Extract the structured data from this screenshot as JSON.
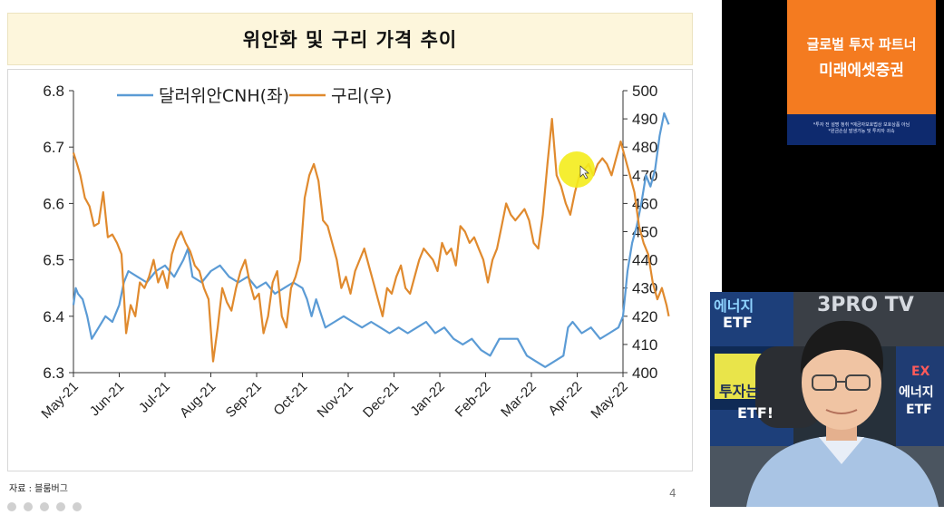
{
  "slide": {
    "title": "위안화 및 구리 가격 추이",
    "source": "자료 : 블룸버그",
    "page_number": "4"
  },
  "chart_data": {
    "type": "line",
    "title": "",
    "xlabel": "",
    "ylabel": "",
    "x_ticks": [
      "May-21",
      "Jun-21",
      "Jul-21",
      "Aug-21",
      "Sep-21",
      "Oct-21",
      "Nov-21",
      "Dec-21",
      "Jan-22",
      "Feb-22",
      "Mar-22",
      "Apr-22",
      "May-22"
    ],
    "y_left": {
      "range": [
        6.3,
        6.8
      ],
      "ticks": [
        "6.3",
        "6.4",
        "6.5",
        "6.6",
        "6.7",
        "6.8"
      ]
    },
    "y_right": {
      "range": [
        400,
        500
      ],
      "ticks": [
        "400",
        "410",
        "420",
        "430",
        "440",
        "450",
        "460",
        "470",
        "480",
        "490",
        "500"
      ]
    },
    "legend_position": "top",
    "grid": false,
    "series": [
      {
        "name": "달러위안CNH(좌)",
        "axis": "left",
        "color": "#5b9bd5",
        "points": [
          [
            0.0,
            6.42
          ],
          [
            0.05,
            6.45
          ],
          [
            0.1,
            6.44
          ],
          [
            0.2,
            6.43
          ],
          [
            0.3,
            6.4
          ],
          [
            0.4,
            6.36
          ],
          [
            0.55,
            6.38
          ],
          [
            0.7,
            6.4
          ],
          [
            0.85,
            6.39
          ],
          [
            1.0,
            6.42
          ],
          [
            1.1,
            6.46
          ],
          [
            1.2,
            6.48
          ],
          [
            1.4,
            6.47
          ],
          [
            1.6,
            6.46
          ],
          [
            1.8,
            6.48
          ],
          [
            2.0,
            6.49
          ],
          [
            2.2,
            6.47
          ],
          [
            2.4,
            6.5
          ],
          [
            2.5,
            6.52
          ],
          [
            2.6,
            6.47
          ],
          [
            2.8,
            6.46
          ],
          [
            3.0,
            6.48
          ],
          [
            3.2,
            6.49
          ],
          [
            3.4,
            6.47
          ],
          [
            3.6,
            6.46
          ],
          [
            3.8,
            6.47
          ],
          [
            4.0,
            6.45
          ],
          [
            4.2,
            6.46
          ],
          [
            4.4,
            6.44
          ],
          [
            4.6,
            6.45
          ],
          [
            4.8,
            6.46
          ],
          [
            5.0,
            6.45
          ],
          [
            5.1,
            6.43
          ],
          [
            5.2,
            6.4
          ],
          [
            5.3,
            6.43
          ],
          [
            5.5,
            6.38
          ],
          [
            5.7,
            6.39
          ],
          [
            5.9,
            6.4
          ],
          [
            6.1,
            6.39
          ],
          [
            6.3,
            6.38
          ],
          [
            6.5,
            6.39
          ],
          [
            6.7,
            6.38
          ],
          [
            6.9,
            6.37
          ],
          [
            7.1,
            6.38
          ],
          [
            7.3,
            6.37
          ],
          [
            7.5,
            6.38
          ],
          [
            7.7,
            6.39
          ],
          [
            7.9,
            6.37
          ],
          [
            8.1,
            6.38
          ],
          [
            8.3,
            6.36
          ],
          [
            8.5,
            6.35
          ],
          [
            8.7,
            6.36
          ],
          [
            8.9,
            6.34
          ],
          [
            9.1,
            6.33
          ],
          [
            9.3,
            6.36
          ],
          [
            9.5,
            6.36
          ],
          [
            9.7,
            6.36
          ],
          [
            9.9,
            6.33
          ],
          [
            10.1,
            6.32
          ],
          [
            10.3,
            6.31
          ],
          [
            10.5,
            6.32
          ],
          [
            10.7,
            6.33
          ],
          [
            10.8,
            6.38
          ],
          [
            10.9,
            6.39
          ],
          [
            11.1,
            6.37
          ],
          [
            11.3,
            6.38
          ],
          [
            11.5,
            6.36
          ],
          [
            11.7,
            6.37
          ],
          [
            11.9,
            6.38
          ],
          [
            12.0,
            6.4
          ],
          [
            12.1,
            6.48
          ],
          [
            12.2,
            6.53
          ],
          [
            12.3,
            6.56
          ],
          [
            12.4,
            6.6
          ],
          [
            12.5,
            6.65
          ],
          [
            12.6,
            6.63
          ],
          [
            12.7,
            6.66
          ],
          [
            12.8,
            6.72
          ],
          [
            12.9,
            6.76
          ],
          [
            13.0,
            6.74
          ]
        ]
      },
      {
        "name": "구리(우)",
        "axis": "right",
        "color": "#e08a2e",
        "points": [
          [
            0.0,
            478
          ],
          [
            0.08,
            474
          ],
          [
            0.15,
            470
          ],
          [
            0.25,
            462
          ],
          [
            0.35,
            459
          ],
          [
            0.45,
            452
          ],
          [
            0.55,
            453
          ],
          [
            0.65,
            464
          ],
          [
            0.75,
            448
          ],
          [
            0.85,
            449
          ],
          [
            0.95,
            446
          ],
          [
            1.05,
            442
          ],
          [
            1.15,
            414
          ],
          [
            1.25,
            424
          ],
          [
            1.35,
            420
          ],
          [
            1.45,
            432
          ],
          [
            1.55,
            430
          ],
          [
            1.65,
            434
          ],
          [
            1.75,
            440
          ],
          [
            1.85,
            432
          ],
          [
            1.95,
            436
          ],
          [
            2.05,
            430
          ],
          [
            2.15,
            442
          ],
          [
            2.25,
            447
          ],
          [
            2.35,
            450
          ],
          [
            2.45,
            446
          ],
          [
            2.55,
            443
          ],
          [
            2.65,
            438
          ],
          [
            2.75,
            436
          ],
          [
            2.85,
            430
          ],
          [
            2.95,
            426
          ],
          [
            3.05,
            404
          ],
          [
            3.15,
            416
          ],
          [
            3.25,
            430
          ],
          [
            3.35,
            425
          ],
          [
            3.45,
            422
          ],
          [
            3.55,
            430
          ],
          [
            3.65,
            436
          ],
          [
            3.75,
            440
          ],
          [
            3.85,
            432
          ],
          [
            3.95,
            426
          ],
          [
            4.05,
            428
          ],
          [
            4.15,
            414
          ],
          [
            4.25,
            420
          ],
          [
            4.35,
            432
          ],
          [
            4.45,
            436
          ],
          [
            4.55,
            420
          ],
          [
            4.65,
            416
          ],
          [
            4.75,
            430
          ],
          [
            4.85,
            434
          ],
          [
            4.95,
            440
          ],
          [
            5.05,
            462
          ],
          [
            5.15,
            470
          ],
          [
            5.25,
            474
          ],
          [
            5.35,
            468
          ],
          [
            5.45,
            454
          ],
          [
            5.55,
            452
          ],
          [
            5.65,
            446
          ],
          [
            5.75,
            440
          ],
          [
            5.85,
            430
          ],
          [
            5.95,
            434
          ],
          [
            6.05,
            428
          ],
          [
            6.15,
            436
          ],
          [
            6.25,
            440
          ],
          [
            6.35,
            444
          ],
          [
            6.45,
            438
          ],
          [
            6.55,
            432
          ],
          [
            6.65,
            426
          ],
          [
            6.75,
            420
          ],
          [
            6.85,
            430
          ],
          [
            6.95,
            428
          ],
          [
            7.05,
            434
          ],
          [
            7.15,
            438
          ],
          [
            7.25,
            430
          ],
          [
            7.35,
            428
          ],
          [
            7.45,
            434
          ],
          [
            7.55,
            440
          ],
          [
            7.65,
            444
          ],
          [
            7.75,
            442
          ],
          [
            7.85,
            440
          ],
          [
            7.95,
            436
          ],
          [
            8.05,
            446
          ],
          [
            8.15,
            442
          ],
          [
            8.25,
            444
          ],
          [
            8.35,
            438
          ],
          [
            8.45,
            452
          ],
          [
            8.55,
            450
          ],
          [
            8.65,
            446
          ],
          [
            8.75,
            448
          ],
          [
            8.85,
            444
          ],
          [
            8.95,
            440
          ],
          [
            9.05,
            432
          ],
          [
            9.15,
            440
          ],
          [
            9.25,
            444
          ],
          [
            9.35,
            452
          ],
          [
            9.45,
            460
          ],
          [
            9.55,
            456
          ],
          [
            9.65,
            454
          ],
          [
            9.75,
            456
          ],
          [
            9.85,
            458
          ],
          [
            9.95,
            454
          ],
          [
            10.05,
            446
          ],
          [
            10.15,
            444
          ],
          [
            10.25,
            456
          ],
          [
            10.35,
            474
          ],
          [
            10.45,
            490
          ],
          [
            10.55,
            470
          ],
          [
            10.65,
            466
          ],
          [
            10.75,
            460
          ],
          [
            10.85,
            456
          ],
          [
            10.95,
            464
          ],
          [
            11.05,
            470
          ],
          [
            11.15,
            472
          ],
          [
            11.25,
            474
          ],
          [
            11.35,
            470
          ],
          [
            11.45,
            474
          ],
          [
            11.55,
            476
          ],
          [
            11.65,
            474
          ],
          [
            11.75,
            470
          ],
          [
            11.85,
            476
          ],
          [
            11.95,
            482
          ],
          [
            12.05,
            476
          ],
          [
            12.15,
            470
          ],
          [
            12.25,
            464
          ],
          [
            12.35,
            452
          ],
          [
            12.45,
            446
          ],
          [
            12.55,
            442
          ],
          [
            12.65,
            432
          ],
          [
            12.75,
            426
          ],
          [
            12.85,
            430
          ],
          [
            12.95,
            424
          ],
          [
            13.0,
            420
          ]
        ]
      }
    ]
  },
  "sponsor": {
    "line1": "글로벌 투자 파트너",
    "line2": "미래에셋증권",
    "disclaimer1": "*투자 전 설명 청취 *예금자보호법상 보호상품 아님",
    "disclaimer2": "*원금손실 발생가능 및 투자자 귀속"
  },
  "webcam": {
    "logo": "3PRO TV",
    "banner_top": "에너지",
    "banner_etf": "ETF",
    "banner_mid": "투자는",
    "banner_mid2": "ETF!",
    "banner_right": "EX",
    "banner_right2": "에너지",
    "banner_right3": "ETF"
  }
}
